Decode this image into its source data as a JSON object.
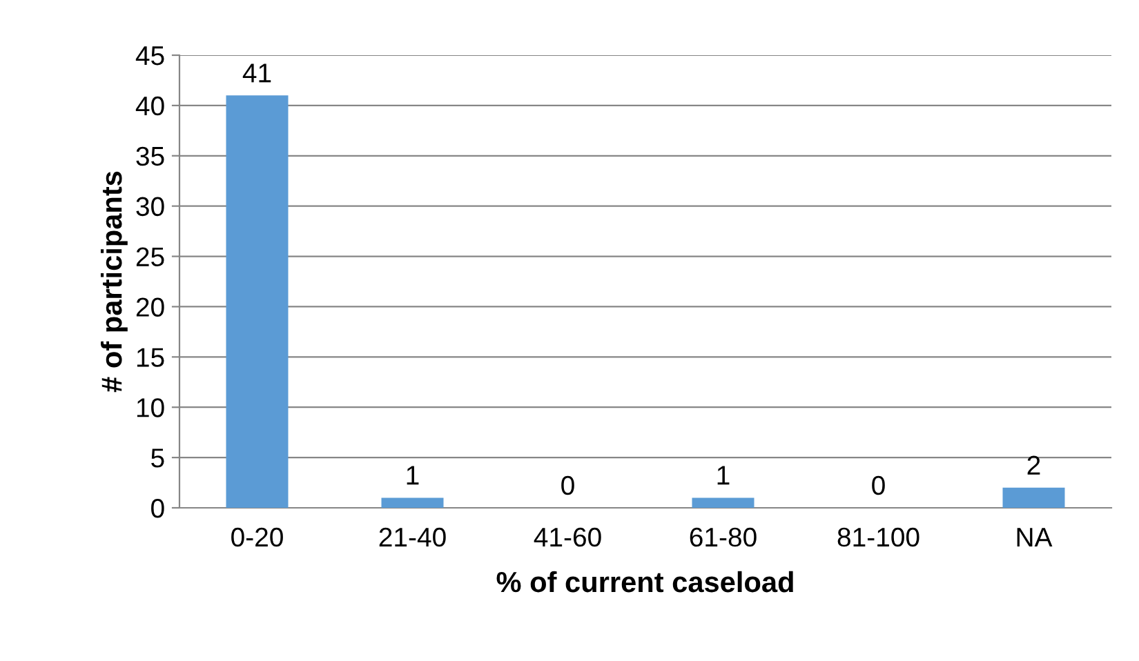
{
  "chart_data": {
    "type": "bar",
    "xlabel": "% of current caseload",
    "ylabel": "# of participants",
    "categories": [
      "0-20",
      "21-40",
      "41-60",
      "61-80",
      "81-100",
      "NA"
    ],
    "values": [
      41,
      1,
      0,
      1,
      0,
      2
    ],
    "color": "#5b9bd5",
    "ylim": [
      0,
      45
    ],
    "yticks": [
      0,
      5,
      10,
      15,
      20,
      25,
      30,
      35,
      40,
      45
    ],
    "grid": "y",
    "data_labels": true
  }
}
